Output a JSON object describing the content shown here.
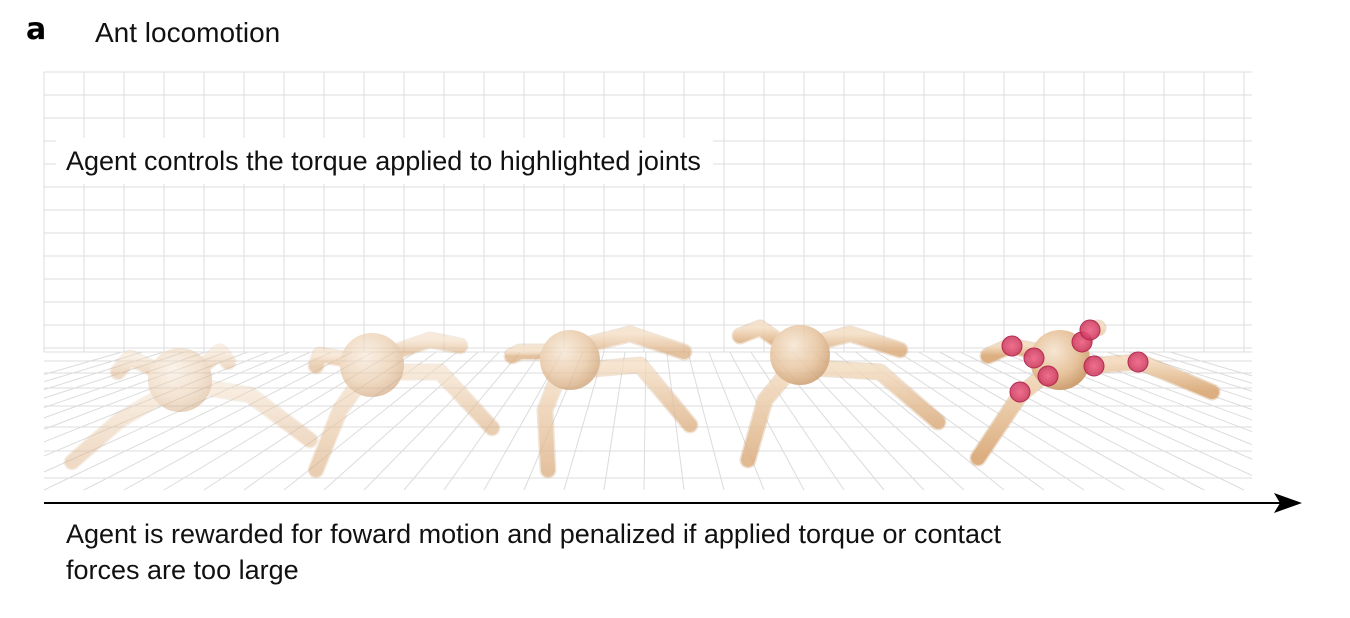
{
  "panel": {
    "letter": "a",
    "title": "Ant locomotion"
  },
  "captions": {
    "top": "Agent controls the torque applied to highlighted joints",
    "bottom": "Agent is rewarded for foward motion and penalized if applied torque or contact forces are too large"
  },
  "colors": {
    "grid": "#dcdcdc",
    "ant_body_light": "#f0d9bf",
    "ant_body_dark": "#d9a672",
    "joint_highlight": "#e0527a",
    "axis": "#000000"
  },
  "ants": {
    "count": 5,
    "highlighted_index": 4,
    "opacity_sequence": [
      0.45,
      0.6,
      0.75,
      0.85,
      1.0
    ]
  }
}
